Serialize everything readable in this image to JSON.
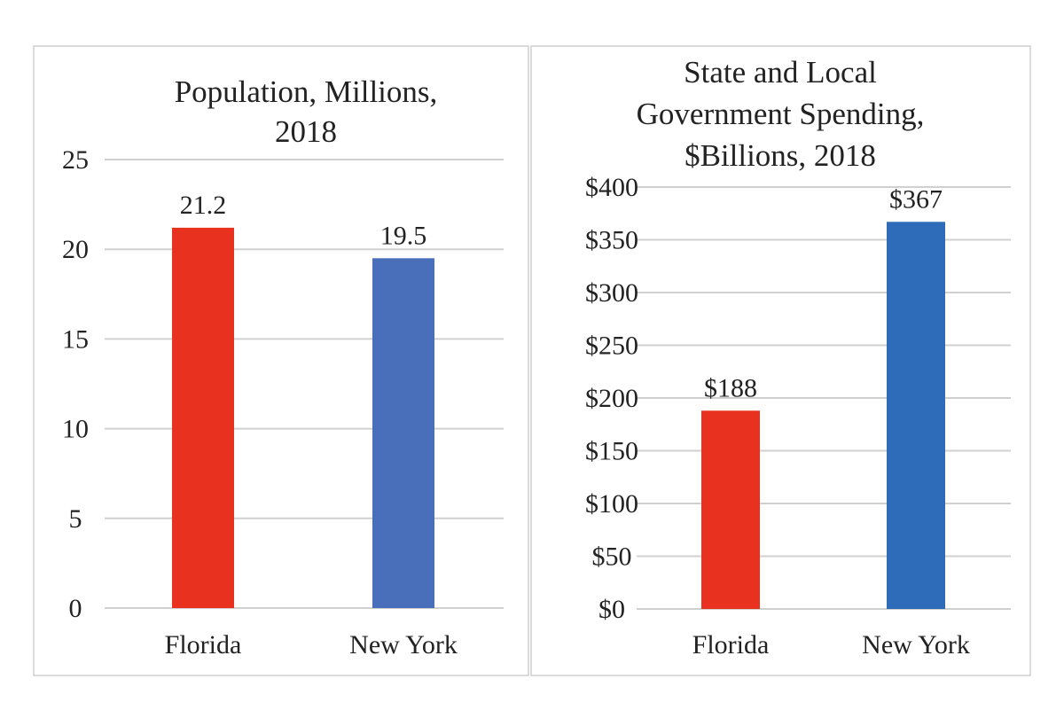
{
  "colors": {
    "florida_left": "#e8321f",
    "newyork_left": "#4a6fba",
    "florida_right": "#e8321f",
    "newyork_right": "#2e6bb8"
  },
  "chart_data": [
    {
      "type": "bar",
      "title_lines": [
        "Population, Millions,",
        "2018"
      ],
      "categories": [
        "Florida",
        "New York"
      ],
      "values": [
        21.2,
        19.5
      ],
      "value_labels": [
        "21.2",
        "19.5"
      ],
      "ylim": [
        0,
        25
      ],
      "yticks": [
        0,
        5,
        10,
        15,
        20,
        25
      ],
      "ytick_labels": [
        "0",
        "5",
        "10",
        "15",
        "20",
        "25"
      ],
      "grid": true
    },
    {
      "type": "bar",
      "title_lines": [
        "State and Local",
        "Government Spending,",
        "$Billions, 2018"
      ],
      "categories": [
        "Florida",
        "New York"
      ],
      "values": [
        188,
        367
      ],
      "value_labels": [
        "$188",
        "$367"
      ],
      "ylim": [
        0,
        400
      ],
      "yticks": [
        0,
        50,
        100,
        150,
        200,
        250,
        300,
        350,
        400
      ],
      "ytick_labels": [
        "$0",
        "$50",
        "$100",
        "$150",
        "$200",
        "$250",
        "$300",
        "$350",
        "$400"
      ],
      "grid": true
    }
  ]
}
